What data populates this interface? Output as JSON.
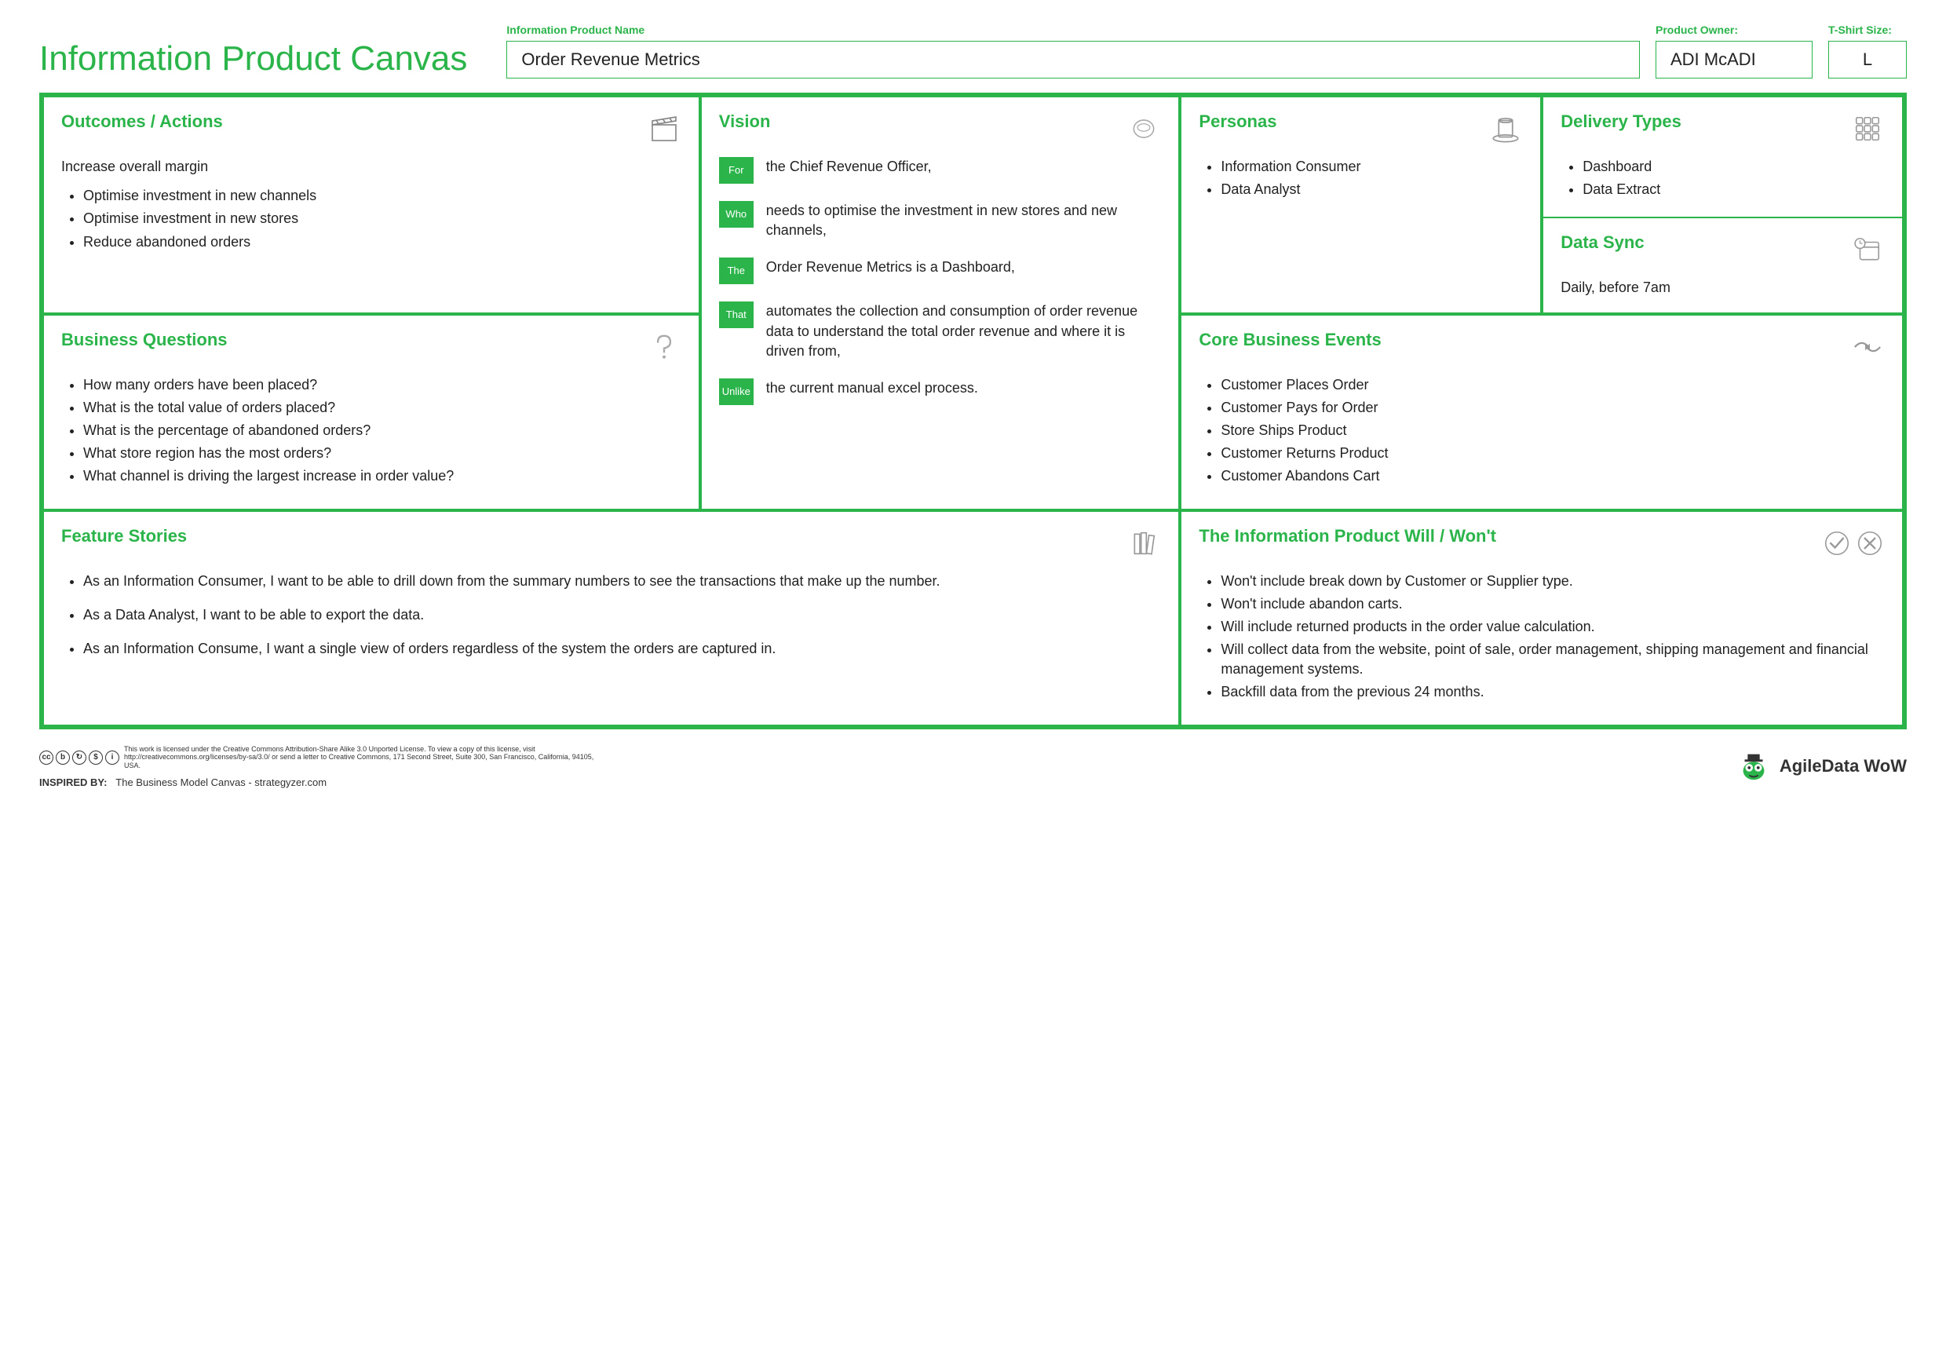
{
  "colors": {
    "brand_green": "#2ab44a",
    "text": "#222222",
    "icon_gray": "#999999",
    "background": "#ffffff"
  },
  "header": {
    "main_title": "Information Product Canvas",
    "product_name_label": "Information Product Name",
    "product_name_value": "Order Revenue Metrics",
    "owner_label": "Product Owner:",
    "owner_value": "ADI McADI",
    "size_label": "T-Shirt Size:",
    "size_value": "L"
  },
  "outcomes": {
    "title": "Outcomes / Actions",
    "lead": "Increase overall margin",
    "items": [
      "Optimise investment in new channels",
      "Optimise investment in new stores",
      "Reduce abandoned orders"
    ]
  },
  "vision": {
    "title": "Vision",
    "rows": [
      {
        "tag": "For",
        "text": "the Chief Revenue Officer,"
      },
      {
        "tag": "Who",
        "text": "needs to optimise the investment in new stores and new channels,"
      },
      {
        "tag": "The",
        "text": "Order Revenue Metrics is a Dashboard,"
      },
      {
        "tag": "That",
        "text": "automates the collection and consumption of order revenue data to understand the total order revenue and where it is driven from,"
      },
      {
        "tag": "Unlike",
        "text": "the current manual excel process."
      }
    ]
  },
  "personas": {
    "title": "Personas",
    "items": [
      "Information Consumer",
      "Data Analyst"
    ]
  },
  "delivery": {
    "title": "Delivery Types",
    "items": [
      "Dashboard",
      "Data Extract"
    ]
  },
  "sync": {
    "title": "Data Sync",
    "text": "Daily, before 7am"
  },
  "bizq": {
    "title": "Business Questions",
    "items": [
      "How many orders have been placed?",
      "What is the total value of orders placed?",
      "What is the percentage of abandoned orders?",
      "What store region has the most orders?",
      "What channel is driving the largest increase in order value?"
    ]
  },
  "events": {
    "title": "Core Business Events",
    "items": [
      "Customer Places Order",
      "Customer Pays for Order",
      "Store Ships Product",
      "Customer Returns Product",
      "Customer Abandons Cart"
    ]
  },
  "features": {
    "title": "Feature Stories",
    "items": [
      "As an Information Consumer, I want to be able to drill down from the summary numbers to see the transactions that make up the number.",
      "As a Data Analyst, I want to be able to export the data.",
      "As an Information Consume, I want a single view of orders regardless of the system the orders are captured in."
    ]
  },
  "willwont": {
    "title": "The Information Product Will / Won't",
    "items": [
      "Won't include break down by Customer or Supplier type.",
      "Won't include abandon carts.",
      "Will include returned products in the order value calculation.",
      "Will collect data from the website, point of sale, order management, shipping management and financial management systems.",
      "Backfill data from the previous 24 months."
    ]
  },
  "footer": {
    "license_text": "This work is licensed under the Creative Commons Attribution-Share Alike 3.0 Unported License. To view a copy of this license, visit http://creativecommons.org/licenses/by-sa/3.0/ or send a letter to Creative Commons, 171 Second Street, Suite 300, San Francisco, California, 94105, USA.",
    "inspired_label": "INSPIRED BY:",
    "inspired_text": "The Business Model Canvas - strategyzer.com",
    "brand": "AgileData WoW"
  }
}
